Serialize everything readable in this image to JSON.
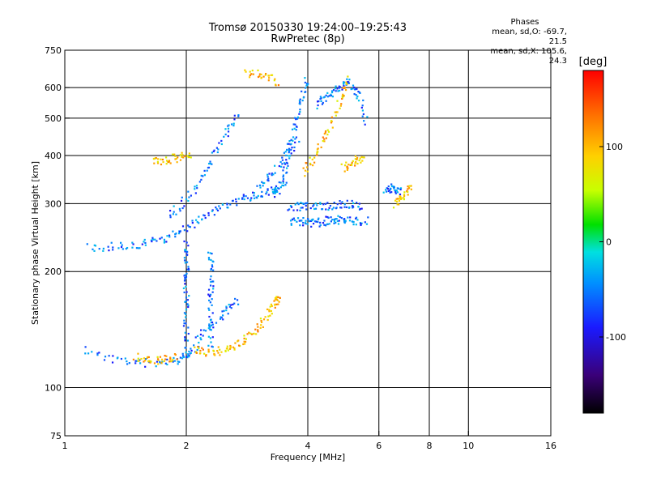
{
  "chart_data": {
    "type": "scatter",
    "title": "Tromsø 20150330 19:24:00–19:25:43",
    "subtitle": "RwPretec (8p)",
    "xlabel": "Frequency [MHz]",
    "ylabel": "Stationary phase Virtual Height [km]",
    "x_scale": "log",
    "y_scale": "log",
    "xlim": [
      1,
      16
    ],
    "ylim": [
      75,
      750
    ],
    "x_ticks": [
      "1",
      "2",
      "4",
      "6",
      "8",
      "10",
      "16"
    ],
    "x_tick_values": [
      1,
      2,
      4,
      6,
      8,
      10,
      16
    ],
    "x_grid_values": [
      2,
      4,
      6,
      8,
      10
    ],
    "y_ticks": [
      "75",
      "100",
      "200",
      "300",
      "400",
      "500",
      "600",
      "750"
    ],
    "y_tick_values": [
      75,
      100,
      200,
      300,
      400,
      500,
      600,
      750
    ],
    "y_grid_values": [
      100,
      200,
      300,
      400,
      500,
      600
    ],
    "grid": true,
    "colorbar": {
      "label": "[deg]",
      "ticks": [
        "100",
        "0",
        "-100"
      ],
      "tick_values": [
        100,
        0,
        -100
      ],
      "range": [
        -180,
        180
      ],
      "colors": [
        "#000000",
        "#3a0078",
        "#1a1aff",
        "#0090ff",
        "#00e0e0",
        "#00e000",
        "#c8ff00",
        "#ffd000",
        "#ff7000",
        "#ff0000"
      ]
    },
    "legend": {
      "title": "Phases",
      "lines": [
        "mean, sd,O: -69.7, 21.5",
        "mean, sd,X: 105.6, 24.3"
      ]
    },
    "series": [
      {
        "name": "O",
        "phase_mean": -69.7,
        "traces": [
          {
            "x": [
              1.12,
              1.3,
              1.5,
              1.7,
              1.9,
              2.0,
              2.1,
              2.2,
              2.4,
              2.55,
              2.7
            ],
            "y": [
              125,
              119,
              116,
              116,
              118,
              121,
              127,
              140,
              150,
              160,
              170
            ]
          },
          {
            "x": [
              1.15,
              1.3,
              1.45,
              1.6,
              1.75,
              1.9,
              2.05,
              2.2,
              2.4,
              2.6,
              2.8,
              3.0,
              3.2,
              3.4
            ],
            "y": [
              232,
              232,
              234,
              237,
              242,
              250,
              262,
              276,
              290,
              300,
              310,
              318,
              322,
              325
            ]
          },
          {
            "x": [
              1.8,
              1.95,
              2.1,
              2.25,
              2.4,
              2.55,
              2.7
            ],
            "y": [
              275,
              300,
              330,
              370,
              420,
              470,
              520
            ]
          },
          {
            "x": [
              2.0,
              2.0,
              2.0,
              2.0,
              2.0,
              2.0,
              2.0
            ],
            "y": [
              120,
              140,
              160,
              180,
              200,
              220,
              240
            ]
          },
          {
            "x": [
              2.3,
              2.3,
              2.3,
              2.3,
              2.3,
              2.3
            ],
            "y": [
              125,
              145,
              165,
              185,
              205,
              225
            ]
          },
          {
            "x": [
              3.3,
              3.4,
              3.5,
              3.55,
              3.6,
              3.7,
              3.8,
              3.9,
              4.0
            ],
            "y": [
              320,
              330,
              345,
              380,
              420,
              470,
              520,
              580,
              640
            ]
          },
          {
            "x": [
              3.6,
              3.8,
              4.0,
              4.2,
              4.4,
              4.6,
              4.8,
              5.0,
              5.3,
              5.6
            ],
            "y": [
              270,
              270,
              268,
              268,
              270,
              272,
              272,
              270,
              270,
              272
            ]
          },
          {
            "x": [
              3.6,
              3.8,
              4.0,
              4.3,
              4.6,
              4.9,
              5.2,
              5.5
            ],
            "y": [
              295,
              295,
              295,
              295,
              296,
              298,
              298,
              295
            ]
          },
          {
            "x": [
              3.0,
              3.2,
              3.4,
              3.6,
              3.8
            ],
            "y": [
              330,
              350,
              380,
              410,
              450
            ]
          },
          {
            "x": [
              4.2,
              4.4,
              4.6,
              4.8,
              5.0,
              5.2,
              5.4,
              5.6
            ],
            "y": [
              540,
              560,
              580,
              600,
              620,
              600,
              560,
              480
            ]
          },
          {
            "x": [
              6.2,
              6.4,
              6.6,
              6.8
            ],
            "y": [
              325,
              330,
              328,
              320
            ]
          }
        ]
      },
      {
        "name": "X",
        "phase_mean": 105.6,
        "traces": [
          {
            "x": [
              2.1,
              2.2,
              2.35,
              2.5,
              2.65,
              2.8,
              2.95,
              3.1,
              3.25,
              3.35,
              3.4
            ],
            "y": [
              125,
              124,
              124,
              125,
              128,
              133,
              140,
              150,
              160,
              168,
              172
            ]
          },
          {
            "x": [
              1.5,
              1.6,
              1.7,
              1.8,
              1.9
            ],
            "y": [
              120,
              118,
              118,
              119,
              120
            ]
          },
          {
            "x": [
              1.65,
              1.75,
              1.85,
              1.95,
              2.05
            ],
            "y": [
              383,
              388,
              393,
              397,
              400
            ]
          },
          {
            "x": [
              3.9,
              4.1,
              4.3,
              4.5,
              4.7,
              4.9,
              5.0
            ],
            "y": [
              360,
              390,
              420,
              460,
              520,
              580,
              640
            ]
          },
          {
            "x": [
              4.9,
              5.1,
              5.3,
              5.5
            ],
            "y": [
              370,
              380,
              390,
              395
            ]
          },
          {
            "x": [
              6.6,
              6.8,
              7.0,
              7.2
            ],
            "y": [
              300,
              310,
              320,
              330
            ]
          },
          {
            "x": [
              2.8,
              3.0,
              3.2,
              3.4
            ],
            "y": [
              655,
              650,
              640,
              620
            ]
          }
        ]
      }
    ]
  }
}
